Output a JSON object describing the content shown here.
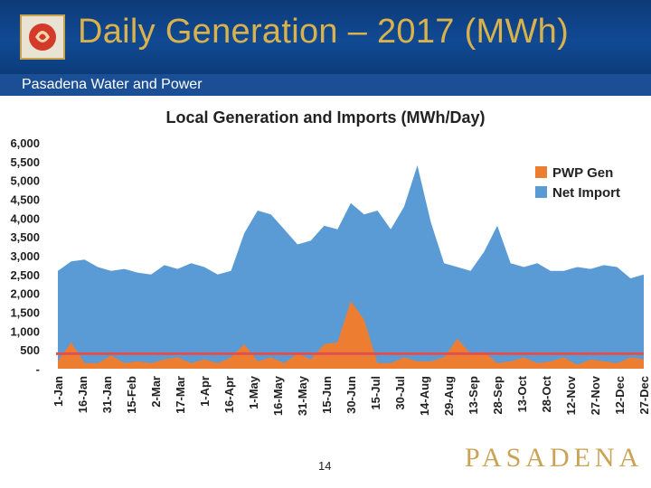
{
  "slide": {
    "title": "Daily Generation – 2017 (MWh)",
    "subtitle": "Pasadena Water and Power",
    "page_number": "14",
    "brand": "PASADENA",
    "colors": {
      "header": "#0d3a78",
      "title_text": "#d9b24c",
      "import": "#5b9bd5",
      "gen": "#ed7d31",
      "threshold": "#e05050",
      "brand": "#caa456"
    }
  },
  "chart_data": {
    "type": "area",
    "title": "Local Generation and Imports (MWh/Day)",
    "xlabel": "",
    "ylabel": "",
    "ylim": [
      0,
      6000
    ],
    "y_ticks": [
      "-",
      "500",
      "1,000",
      "1,500",
      "2,000",
      "2,500",
      "3,000",
      "3,500",
      "4,000",
      "4,500",
      "5,000",
      "5,500",
      "6,000"
    ],
    "x_ticks": [
      "1-Jan",
      "16-Jan",
      "31-Jan",
      "15-Feb",
      "2-Mar",
      "17-Mar",
      "1-Apr",
      "16-Apr",
      "1-May",
      "16-May",
      "31-May",
      "15-Jun",
      "30-Jun",
      "15-Jul",
      "30-Jul",
      "14-Aug",
      "29-Aug",
      "13-Sep",
      "28-Sep",
      "13-Oct",
      "28-Oct",
      "12-Nov",
      "27-Nov",
      "12-Dec",
      "27-Dec"
    ],
    "reference_line": 400,
    "legend": [
      "PWP Gen",
      "Net Import"
    ],
    "legend_position": "top-right",
    "series": [
      {
        "name": "Net Import",
        "stack_total": [
          2600,
          2850,
          2900,
          2700,
          2600,
          2650,
          2550,
          2500,
          2750,
          2650,
          2800,
          2700,
          2500,
          2600,
          3600,
          4200,
          4100,
          3700,
          3300,
          3400,
          3800,
          3700,
          4400,
          4100,
          4200,
          3700,
          4300,
          5400,
          3900,
          2800,
          2700,
          2600,
          3100,
          3800,
          2800,
          2700,
          2800,
          2600,
          2600,
          2700,
          2650,
          2750,
          2700,
          2400,
          2500
        ],
        "note": "total daily load (generation + imports), sampled roughly every 8 days from 1-Jan to 31-Dec"
      },
      {
        "name": "PWP Gen",
        "values": [
          200,
          700,
          150,
          150,
          350,
          150,
          200,
          150,
          250,
          300,
          150,
          250,
          150,
          300,
          650,
          200,
          300,
          150,
          400,
          250,
          650,
          700,
          1800,
          1300,
          150,
          150,
          300,
          200,
          200,
          300,
          800,
          400,
          450,
          150,
          200,
          300,
          150,
          200,
          300,
          100,
          250,
          200,
          150,
          300,
          250
        ],
        "note": "local generation, sampled roughly every 8 days from 1-Jan to 31-Dec"
      }
    ]
  }
}
